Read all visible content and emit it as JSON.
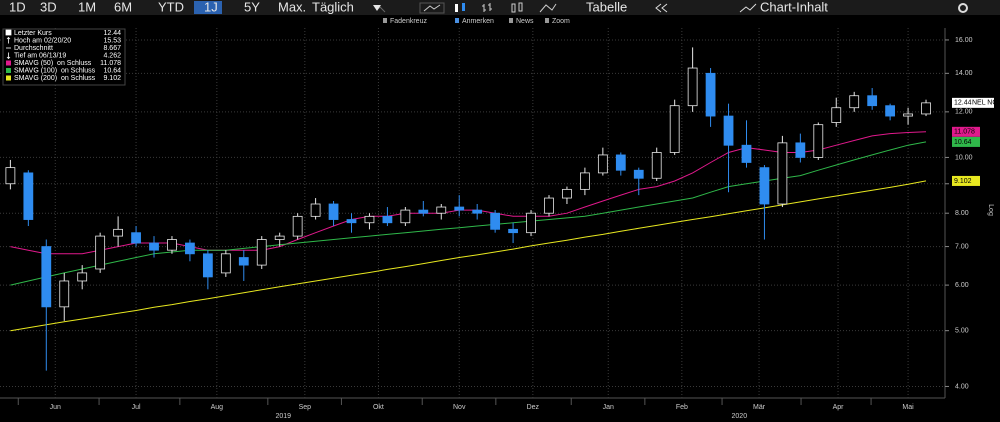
{
  "toolbar": {
    "ranges": [
      "1D",
      "3D",
      "1M",
      "6M",
      "YTD",
      "1J",
      "5Y",
      "Max."
    ],
    "active_range": 5,
    "interval": "Täglich",
    "table": "Tabelle",
    "content": "Chart-Inhalt"
  },
  "subtoolbar": [
    "Fadenkreuz",
    "Anmerken",
    "News",
    "Zoom"
  ],
  "chart_data": {
    "type": "candlestick",
    "log_scale": true,
    "grid": true,
    "ticker": "NEL NO",
    "axis_label": "Log",
    "up_color": "#e8e8e8",
    "down_color": "#2f8cf0",
    "ylim": [
      3.85,
      16.65
    ],
    "yticks": [
      {
        "value": 4,
        "label": "4.00"
      },
      {
        "value": 5,
        "label": "5.00"
      },
      {
        "value": 6,
        "label": "6.00"
      },
      {
        "value": 7,
        "label": "7.00"
      },
      {
        "value": 8,
        "label": "8.00"
      },
      {
        "value": 9,
        "label": "9.00"
      },
      {
        "value": 10,
        "label": "10.00"
      },
      {
        "value": 12,
        "label": "12.00"
      },
      {
        "value": 14,
        "label": "14.00"
      },
      {
        "value": 16,
        "label": "16.00"
      }
    ],
    "xlim": [
      -0.3,
      51.5
    ],
    "xticks": [
      {
        "value": 2.5,
        "label": "Jun"
      },
      {
        "value": 7,
        "label": "Jul"
      },
      {
        "value": 11.5,
        "label": "Aug"
      },
      {
        "value": 16.4,
        "label": "Sep"
      },
      {
        "value": 20.5,
        "label": "Okt"
      },
      {
        "value": 25,
        "label": "Nov"
      },
      {
        "value": 29.1,
        "label": "Dez"
      },
      {
        "value": 33.3,
        "label": "Jan"
      },
      {
        "value": 37.4,
        "label": "Feb"
      },
      {
        "value": 41.7,
        "label": "Mär"
      },
      {
        "value": 46.1,
        "label": "Apr"
      },
      {
        "value": 50,
        "label": "Mai"
      }
    ],
    "year_ticks": [
      {
        "value": 15.2,
        "label": "2019"
      },
      {
        "value": 40.6,
        "label": "2020"
      }
    ],
    "stats": [
      {
        "label": "Letzter Kurs",
        "value": 12.44
      },
      {
        "label": "Hoch am 02/20/20",
        "value": 15.53
      },
      {
        "label": "Durchschnitt",
        "value": 8.667
      },
      {
        "label": "Tief am 06/13/19",
        "value": 4.262
      }
    ],
    "open": [
      9.0,
      9.4,
      7.0,
      5.5,
      6.1,
      6.4,
      7.3,
      7.4,
      7.1,
      6.9,
      7.1,
      6.8,
      6.3,
      6.7,
      6.5,
      7.2,
      7.3,
      7.9,
      8.3,
      7.8,
      7.7,
      7.9,
      7.7,
      8.1,
      8.0,
      8.2,
      8.1,
      8.0,
      7.5,
      7.4,
      8.0,
      8.5,
      8.8,
      9.4,
      10.1,
      9.5,
      9.2,
      10.2,
      12.3,
      14.0,
      11.8,
      10.5,
      9.6,
      8.3,
      10.6,
      10.0,
      11.5,
      12.2,
      12.8,
      12.3,
      11.8,
      11.9
    ],
    "high": [
      9.9,
      9.5,
      7.2,
      6.3,
      6.5,
      7.4,
      7.9,
      7.6,
      7.3,
      7.3,
      7.2,
      6.9,
      6.9,
      6.9,
      7.3,
      7.4,
      8.0,
      8.5,
      8.4,
      8.0,
      8.0,
      8.2,
      8.2,
      8.4,
      8.3,
      8.6,
      8.3,
      8.1,
      7.7,
      8.1,
      8.6,
      8.9,
      9.6,
      10.4,
      10.2,
      9.6,
      10.4,
      12.6,
      15.53,
      14.3,
      12.4,
      11.6,
      9.7,
      10.9,
      11.0,
      11.5,
      12.7,
      13.0,
      13.2,
      12.4,
      12.2,
      12.6
    ],
    "low": [
      8.8,
      7.6,
      4.262,
      5.2,
      5.9,
      6.3,
      7.0,
      7.0,
      6.7,
      6.8,
      6.6,
      5.9,
      6.2,
      6.1,
      6.4,
      7.0,
      7.2,
      7.8,
      7.6,
      7.4,
      7.5,
      7.6,
      7.6,
      7.9,
      7.8,
      7.9,
      7.8,
      7.4,
      7.1,
      7.3,
      7.9,
      8.3,
      8.6,
      9.3,
      9.3,
      8.6,
      9.1,
      10.1,
      12.0,
      11.3,
      8.7,
      9.6,
      7.2,
      8.2,
      9.8,
      9.9,
      11.3,
      12.0,
      12.1,
      11.6,
      11.4,
      11.8
    ],
    "close": [
      9.6,
      7.8,
      5.5,
      6.1,
      6.3,
      7.3,
      7.5,
      7.1,
      6.9,
      7.2,
      6.8,
      6.2,
      6.8,
      6.5,
      7.2,
      7.3,
      7.9,
      8.3,
      7.8,
      7.7,
      7.9,
      7.7,
      8.1,
      8.0,
      8.2,
      8.1,
      8.0,
      7.5,
      7.4,
      8.0,
      8.5,
      8.8,
      9.4,
      10.1,
      9.5,
      9.2,
      10.2,
      12.3,
      14.3,
      11.8,
      10.5,
      9.8,
      8.3,
      10.6,
      10.0,
      11.4,
      12.2,
      12.8,
      12.3,
      11.8,
      11.9,
      12.44
    ],
    "series": [
      {
        "name": "SMAVG (50)  on Schluss",
        "color": "#e0198c",
        "last": 11.078,
        "values": [
          7.0,
          6.9,
          6.8,
          6.8,
          6.8,
          6.9,
          7.0,
          7.1,
          7.1,
          7.1,
          7.0,
          6.9,
          6.9,
          6.9,
          6.9,
          7.0,
          7.2,
          7.4,
          7.6,
          7.8,
          7.9,
          7.9,
          8.0,
          8.0,
          8.0,
          8.1,
          8.1,
          8.0,
          7.9,
          7.9,
          7.9,
          8.0,
          8.2,
          8.4,
          8.6,
          8.8,
          8.9,
          9.1,
          9.4,
          9.8,
          10.2,
          10.4,
          10.3,
          10.2,
          10.2,
          10.3,
          10.5,
          10.7,
          10.9,
          11.0,
          11.05,
          11.078
        ]
      },
      {
        "name": "SMAVG (100)  on Schluss",
        "color": "#2fb84a",
        "last": 10.64,
        "values": [
          6.0,
          6.1,
          6.2,
          6.3,
          6.4,
          6.5,
          6.6,
          6.7,
          6.8,
          6.85,
          6.9,
          6.9,
          6.9,
          6.95,
          7.0,
          7.05,
          7.1,
          7.15,
          7.2,
          7.25,
          7.3,
          7.35,
          7.4,
          7.45,
          7.5,
          7.55,
          7.6,
          7.65,
          7.7,
          7.75,
          7.8,
          7.85,
          7.9,
          8.0,
          8.1,
          8.2,
          8.3,
          8.4,
          8.5,
          8.7,
          8.9,
          9.0,
          9.1,
          9.2,
          9.3,
          9.5,
          9.7,
          9.9,
          10.1,
          10.3,
          10.5,
          10.64
        ]
      },
      {
        "name": "SMAVG (200)  on Schluss",
        "color": "#e8e820",
        "last": 9.102,
        "values": [
          5.0,
          5.06,
          5.12,
          5.18,
          5.24,
          5.3,
          5.36,
          5.42,
          5.49,
          5.55,
          5.62,
          5.68,
          5.75,
          5.82,
          5.89,
          5.96,
          6.03,
          6.1,
          6.17,
          6.24,
          6.31,
          6.39,
          6.46,
          6.54,
          6.62,
          6.7,
          6.77,
          6.85,
          6.93,
          7.02,
          7.1,
          7.18,
          7.27,
          7.35,
          7.44,
          7.53,
          7.62,
          7.71,
          7.8,
          7.89,
          7.98,
          8.08,
          8.17,
          8.27,
          8.37,
          8.47,
          8.57,
          8.67,
          8.77,
          8.87,
          8.98,
          9.102
        ]
      }
    ]
  }
}
